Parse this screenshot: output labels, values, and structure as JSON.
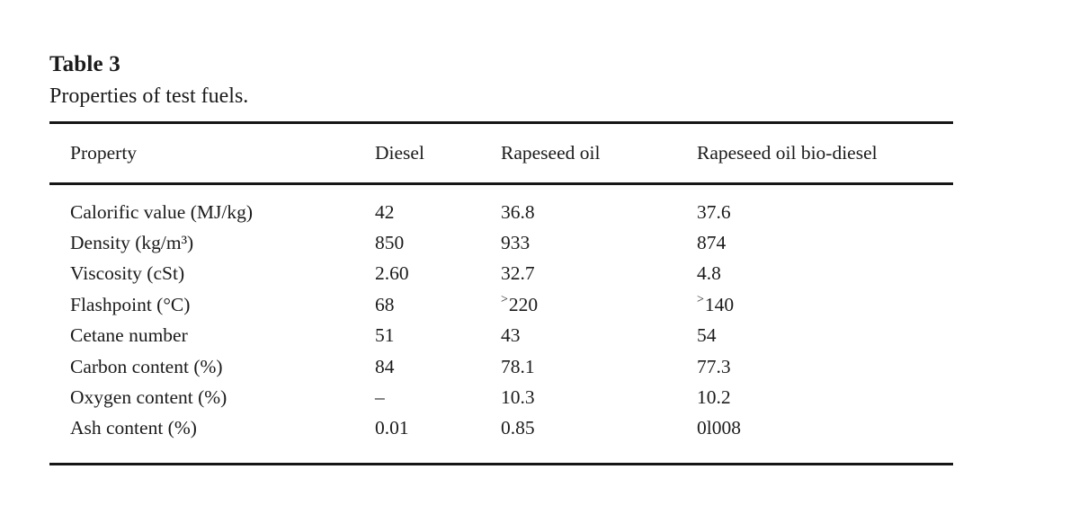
{
  "caption": {
    "label": "Table 3",
    "title": "Properties of test fuels."
  },
  "table": {
    "columns": [
      "Property",
      "Diesel",
      "Rapeseed oil",
      "Rapeseed oil bio-diesel"
    ],
    "rows": [
      {
        "property": "Calorific value (MJ/kg)",
        "values": [
          {
            "t": "42"
          },
          {
            "t": "36.8"
          },
          {
            "t": "37.6"
          }
        ]
      },
      {
        "property": "Density (kg/m³)",
        "values": [
          {
            "t": "850"
          },
          {
            "t": "933"
          },
          {
            "t": "874"
          }
        ]
      },
      {
        "property": "Viscosity (cSt)",
        "values": [
          {
            "t": "2.60"
          },
          {
            "t": "32.7"
          },
          {
            "t": "4.8"
          }
        ]
      },
      {
        "property": "Flashpoint (°C)",
        "values": [
          {
            "t": "68"
          },
          {
            "sup": ">",
            "t": "220"
          },
          {
            "sup": ">",
            "t": "140"
          }
        ]
      },
      {
        "property": "Cetane number",
        "values": [
          {
            "t": "51"
          },
          {
            "t": "43"
          },
          {
            "t": "54"
          }
        ]
      },
      {
        "property": "Carbon content (%)",
        "values": [
          {
            "t": "84"
          },
          {
            "t": "78.1"
          },
          {
            "t": "77.3"
          }
        ]
      },
      {
        "property": "Oxygen content (%)",
        "values": [
          {
            "t": "–"
          },
          {
            "t": "10.3"
          },
          {
            "t": "10.2"
          }
        ]
      },
      {
        "property": "Ash content (%)",
        "values": [
          {
            "t": "0.01"
          },
          {
            "t": "0.85"
          },
          {
            "t": "0l008"
          }
        ]
      }
    ]
  },
  "colors": {
    "background": "#ffffff",
    "text": "#1b1b1b",
    "rule": "#161616"
  }
}
